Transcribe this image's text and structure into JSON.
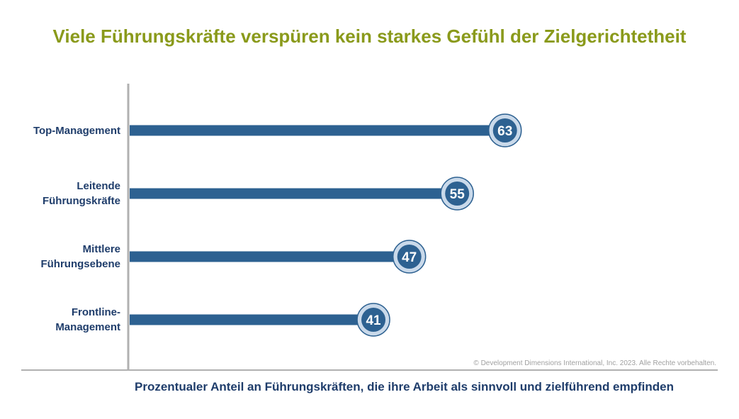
{
  "title": "Viele Führungskräfte verspüren kein starkes Gefühl der Zielgerichtetheit",
  "copyright": "© Development Dimensions International, Inc. 2023. Alle Rechte vorbehalten.",
  "colors": {
    "title": "#8a9a1b",
    "bar": "#2d6191",
    "text": "#1f3d6b",
    "axis": "#b0b0b0",
    "badge_ring": "#c9d9ea"
  },
  "chart_data": {
    "type": "bar",
    "orientation": "horizontal",
    "title": "Viele Führungskräfte verspüren kein starkes Gefühl der Zielgerichtetheit",
    "xlabel": "Prozentualer Anteil an Führungskräften, die ihre Arbeit als sinnvoll und zielführend empfinden",
    "ylabel": "",
    "categories": [
      [
        "Top-Management"
      ],
      [
        "Leitende",
        "Führungskräfte"
      ],
      [
        "Mittlere",
        "Führungsebene"
      ],
      [
        "Frontline-",
        "Management"
      ]
    ],
    "values": [
      63,
      55,
      47,
      41
    ],
    "data_labels": [
      "63",
      "55",
      "47",
      "41"
    ],
    "xlim": [
      0,
      100
    ],
    "grid": false,
    "legend": "none"
  }
}
